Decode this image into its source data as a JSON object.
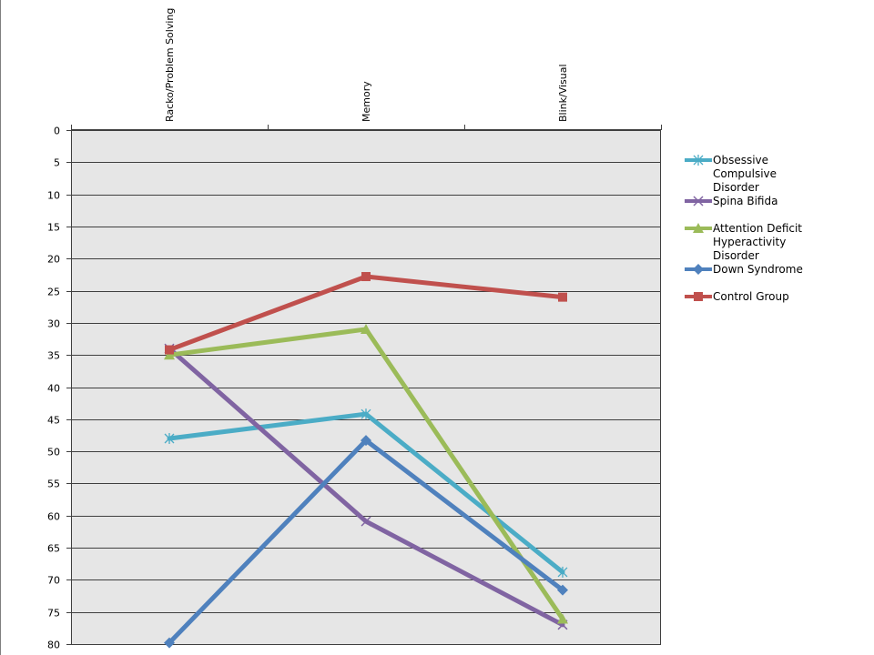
{
  "chart_data": {
    "type": "line",
    "categories": [
      "Racko/Problem Solving",
      "Memory",
      "Blink/Visual"
    ],
    "y_axis": {
      "ylim": [
        0,
        80
      ],
      "tick_step": 5,
      "reversed": true
    },
    "grid": true,
    "legend_position": "right",
    "plot_background": "#e6e6e6",
    "series": [
      {
        "name": "Obsessive Compulsive Disorder",
        "values": [
          48,
          44.2,
          68.8
        ],
        "color": "#4bacc6",
        "marker": "star"
      },
      {
        "name": "Spina Bifida",
        "values": [
          34,
          60.9,
          77
        ],
        "color": "#8064a2",
        "marker": "x"
      },
      {
        "name": "Attention Deficit Hyperactivity Disorder",
        "values": [
          35,
          31,
          76.1
        ],
        "color": "#9bbb59",
        "marker": "triangle"
      },
      {
        "name": "Down Syndrome",
        "values": [
          79.8,
          48.3,
          71.6
        ],
        "color": "#4f81bd",
        "marker": "diamond"
      },
      {
        "name": "Control Group",
        "values": [
          34.2,
          22.8,
          26
        ],
        "color": "#c0504d",
        "marker": "square"
      }
    ]
  }
}
